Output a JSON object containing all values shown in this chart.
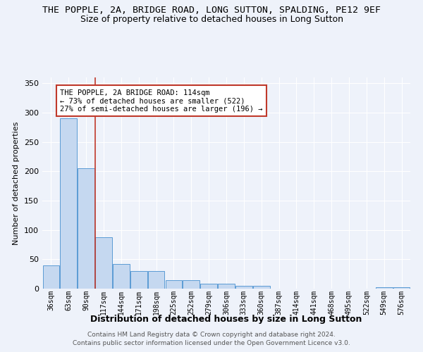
{
  "title": "THE POPPLE, 2A, BRIDGE ROAD, LONG SUTTON, SPALDING, PE12 9EF",
  "subtitle": "Size of property relative to detached houses in Long Sutton",
  "xlabel": "Distribution of detached houses by size in Long Sutton",
  "ylabel": "Number of detached properties",
  "categories": [
    "36sqm",
    "63sqm",
    "90sqm",
    "117sqm",
    "144sqm",
    "171sqm",
    "198sqm",
    "225sqm",
    "252sqm",
    "279sqm",
    "306sqm",
    "333sqm",
    "360sqm",
    "387sqm",
    "414sqm",
    "441sqm",
    "468sqm",
    "495sqm",
    "522sqm",
    "549sqm",
    "576sqm"
  ],
  "values": [
    40,
    290,
    205,
    88,
    42,
    30,
    30,
    15,
    15,
    8,
    8,
    5,
    5,
    0,
    0,
    0,
    0,
    0,
    0,
    3,
    3
  ],
  "bar_color": "#c5d8f0",
  "bar_edge_color": "#5b9bd5",
  "vline_x_index": 3,
  "vline_color": "#c0392b",
  "annotation_text": "THE POPPLE, 2A BRIDGE ROAD: 114sqm\n← 73% of detached houses are smaller (522)\n27% of semi-detached houses are larger (196) →",
  "annotation_box_color": "white",
  "annotation_box_edge_color": "#c0392b",
  "ylim": [
    0,
    360
  ],
  "yticks": [
    0,
    50,
    100,
    150,
    200,
    250,
    300,
    350
  ],
  "footer1": "Contains HM Land Registry data © Crown copyright and database right 2024.",
  "footer2": "Contains public sector information licensed under the Open Government Licence v3.0.",
  "bg_color": "#eef2fa",
  "grid_color": "#ffffff",
  "title_fontsize": 9.5,
  "subtitle_fontsize": 9
}
